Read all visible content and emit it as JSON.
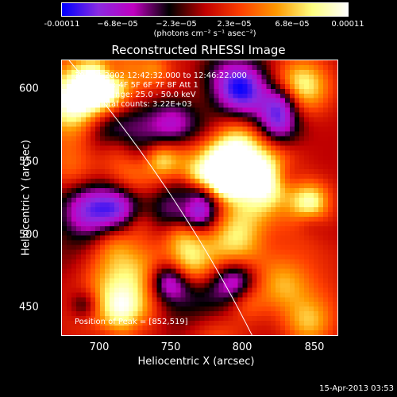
{
  "chart_data": {
    "type": "heatmap",
    "title": "Reconstructed RHESSI Image",
    "xlabel": "Heliocentric X (arcsec)",
    "ylabel": "Heliocentric Y (arcsec)",
    "xlim": [
      672,
      864
    ],
    "ylim": [
      429,
      623
    ],
    "x_ticks": [
      "700",
      "750",
      "800",
      "850"
    ],
    "x_tick_values": [
      700,
      750,
      800,
      850
    ],
    "y_ticks": [
      "450",
      "500",
      "550",
      "600"
    ],
    "y_tick_values": [
      450,
      500,
      550,
      600
    ],
    "colorbar": {
      "min": -0.00011,
      "max": 0.00011,
      "ticks": [
        "-0.00011",
        "−6.8e−05",
        "−2.3e−05",
        "2.3e−05",
        "6.8e−05",
        "0.00011"
      ],
      "tick_values": [
        -0.00011,
        -6.8e-05,
        -2.3e-05,
        2.3e-05,
        6.8e-05,
        0.00011
      ],
      "units": "(photons cm⁻² s⁻¹ asec⁻²)",
      "colors": [
        "#0000ff",
        "#8a2be2",
        "#c000c0",
        "#000000",
        "#c00000",
        "#ff4000",
        "#ff9900",
        "#ffff80",
        "#ffffff"
      ]
    },
    "info_lines": [
      "30-Oct-2002 12:42:32.000 to 12:46:22.000",
      "Detectors: 4F 5F 6F 7F 8F  Att 1",
      "Energy Range: 25.0 - 50.0 keV",
      "Clean     Total counts: 3.22E+03"
    ],
    "peak_label": "Position of Peak = [852,519]",
    "peak_position": [
      852,
      519
    ],
    "limb_arc": true,
    "grid": false
  },
  "timestamp": "15-Apr-2013 03:53"
}
